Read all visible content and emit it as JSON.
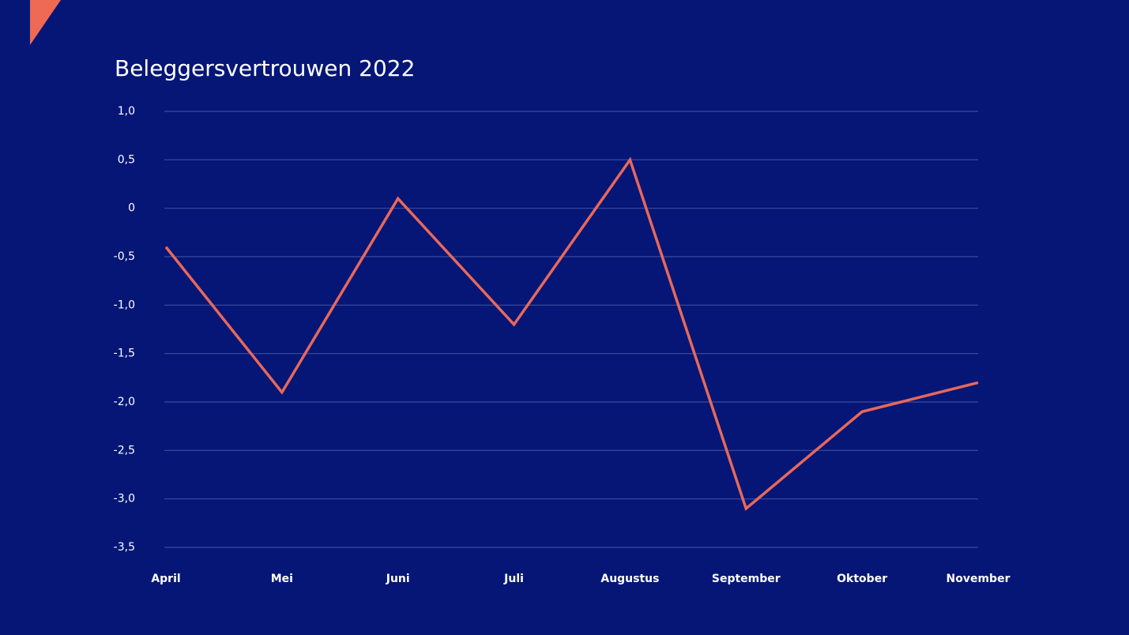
{
  "chart_data": {
    "type": "line",
    "title": "Beleggersvertrouwen 2022",
    "categories": [
      "April",
      "Mei",
      "Juni",
      "Juli",
      "Augustus",
      "September",
      "Oktober",
      "November"
    ],
    "series": [
      {
        "name": "Beleggersvertrouwen",
        "color": "#e8685a",
        "values": [
          -0.4,
          -1.9,
          0.1,
          -1.2,
          0.5,
          -3.1,
          -2.1,
          -1.8
        ]
      }
    ],
    "ylim": [
      -3.5,
      1
    ],
    "yticks": [
      {
        "value": -3.5,
        "label": "-3,5"
      },
      {
        "value": -3,
        "label": "-3,0"
      },
      {
        "value": -2.5,
        "label": "-2,5"
      },
      {
        "value": -2,
        "label": "-2,0"
      },
      {
        "value": -1.5,
        "label": "-1,5"
      },
      {
        "value": -1,
        "label": "-1,0"
      },
      {
        "value": -0.5,
        "label": "-0,5"
      },
      0,
      {
        "value": 0.5,
        "label": "0,5"
      },
      {
        "value": 1,
        "label": "1,0"
      }
    ],
    "grid": true
  }
}
